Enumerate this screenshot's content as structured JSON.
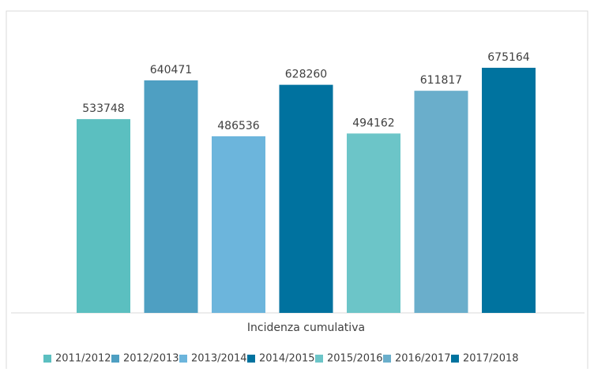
{
  "chart_data": {
    "type": "bar",
    "categories": [
      "Incidenza cumulativa"
    ],
    "series": [
      {
        "name": "2011/2012",
        "color": "#5bbfc0",
        "values": [
          533748
        ]
      },
      {
        "name": "2012/2013",
        "color": "#4e9fc2",
        "values": [
          640471
        ]
      },
      {
        "name": "2013/2014",
        "color": "#6cb5dc",
        "values": [
          486536
        ]
      },
      {
        "name": "2014/2015",
        "color": "#00729f",
        "values": [
          628260
        ]
      },
      {
        "name": "2015/2016",
        "color": "#6cc5c8",
        "values": [
          494162
        ]
      },
      {
        "name": "2016/2017",
        "color": "#6aaecb",
        "values": [
          611817
        ]
      },
      {
        "name": "2017/2018",
        "color": "#00739f",
        "values": [
          675164
        ]
      }
    ],
    "legend": "bottom"
  }
}
